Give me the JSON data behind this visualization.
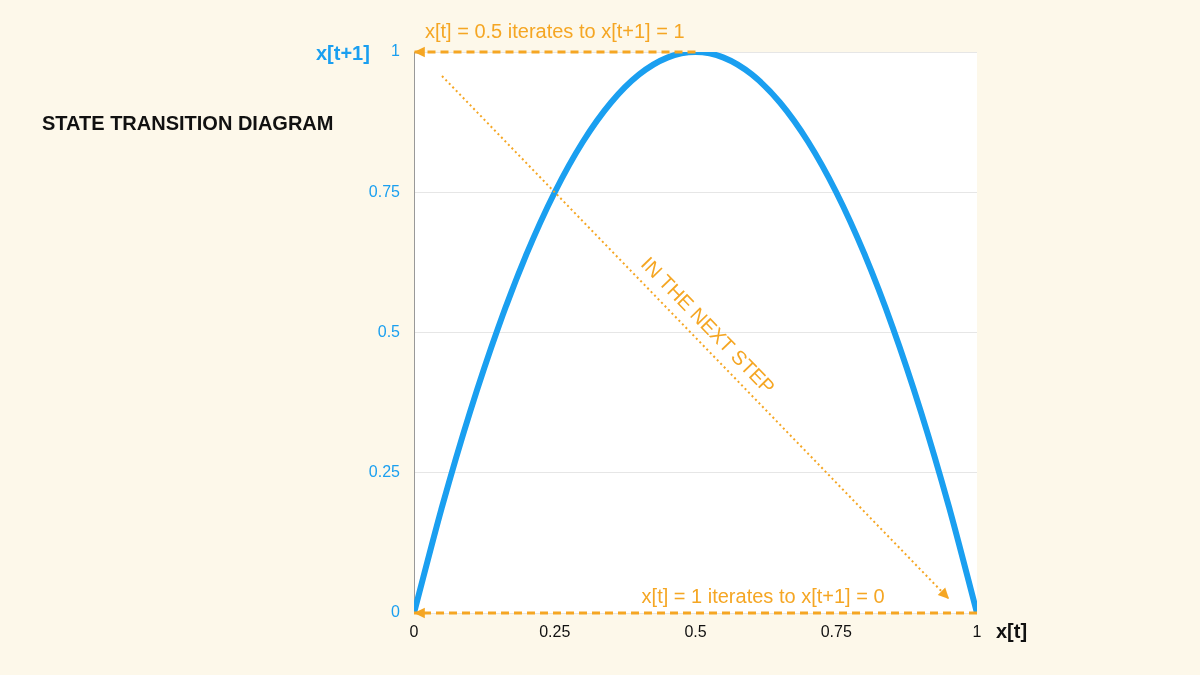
{
  "chart_data": {
    "type": "line",
    "title": "STATE TRANSITION DIAGRAM",
    "xlabel": "x[t]",
    "ylabel": "x[t+1]",
    "x": [
      0,
      0.05,
      0.1,
      0.15,
      0.2,
      0.25,
      0.3,
      0.35,
      0.4,
      0.45,
      0.5,
      0.55,
      0.6,
      0.65,
      0.7,
      0.75,
      0.8,
      0.85,
      0.9,
      0.95,
      1
    ],
    "series": [
      {
        "color": "#1a9ff0",
        "values": [
          0,
          0.19,
          0.36,
          0.51,
          0.64,
          0.75,
          0.84,
          0.91,
          0.96,
          0.99,
          1,
          0.99,
          0.96,
          0.91,
          0.84,
          0.75,
          0.64,
          0.51,
          0.36,
          0.19,
          0
        ]
      }
    ],
    "xlim": [
      0,
      1
    ],
    "ylim": [
      0,
      1
    ],
    "xticks": [
      0,
      0.25,
      0.5,
      0.75,
      1
    ],
    "yticks": [
      0,
      0.25,
      0.5,
      0.75,
      1
    ],
    "grid": "y",
    "marker": "none",
    "line_style": "solid",
    "legend": false,
    "annotations": [
      "x[t] = 0.5 iterates to x[t+1] = 1",
      "x[t] = 1 iterates to x[t+1] = 0",
      "IN THE NEXT STEP"
    ]
  }
}
